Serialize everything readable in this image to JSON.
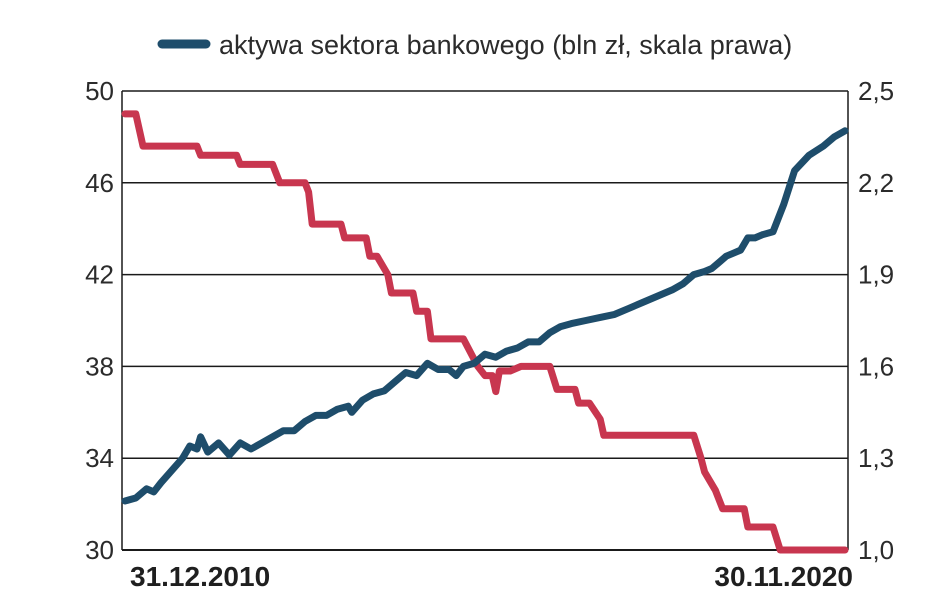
{
  "chart_data": {
    "type": "line",
    "legend": {
      "position": "top"
    },
    "x_start_label": "31.12.2010",
    "x_end_label": "30.11.2020",
    "left_axis": {
      "ylim": [
        30,
        50
      ],
      "ticks": [
        "30",
        "34",
        "38",
        "42",
        "46",
        "50"
      ]
    },
    "right_axis": {
      "ylim": [
        1.0,
        2.5
      ],
      "ticks": [
        "1,0",
        "1,3",
        "1,6",
        "1,9",
        "2,2",
        "2,5"
      ]
    },
    "grid": true,
    "series": [
      {
        "name": "",
        "axis": "left",
        "color": "#c8364f",
        "x": [
          0,
          0.015,
          0.025,
          0.1,
          0.105,
          0.155,
          0.16,
          0.205,
          0.21,
          0.215,
          0.25,
          0.255,
          0.26,
          0.3,
          0.305,
          0.335,
          0.34,
          0.35,
          0.365,
          0.37,
          0.4,
          0.405,
          0.42,
          0.425,
          0.47,
          0.49,
          0.5,
          0.51,
          0.515,
          0.52,
          0.535,
          0.55,
          0.56,
          0.59,
          0.6,
          0.625,
          0.63,
          0.645,
          0.66,
          0.665,
          0.79,
          0.8,
          0.805,
          0.82,
          0.83,
          0.86,
          0.865,
          0.9,
          0.91,
          1.0
        ],
        "values": [
          49.0,
          49.0,
          47.6,
          47.6,
          47.2,
          47.2,
          46.8,
          46.8,
          46.4,
          46.0,
          46.0,
          45.6,
          44.2,
          44.2,
          43.6,
          43.6,
          42.8,
          42.8,
          42.0,
          41.2,
          41.2,
          40.4,
          40.4,
          39.2,
          39.2,
          38.0,
          37.6,
          37.6,
          36.9,
          37.8,
          37.8,
          38.0,
          38.0,
          38.0,
          37.0,
          37.0,
          36.4,
          36.4,
          35.7,
          35.0,
          35.0,
          34.0,
          33.4,
          32.6,
          31.8,
          31.8,
          31.0,
          31.0,
          30.0,
          30.0
        ]
      },
      {
        "name": "aktywa sektora bankowego (bln zł, skala prawa)",
        "axis": "right",
        "color": "#1e4d6b",
        "x": [
          0,
          0.015,
          0.03,
          0.04,
          0.05,
          0.065,
          0.08,
          0.09,
          0.1,
          0.105,
          0.115,
          0.13,
          0.145,
          0.16,
          0.175,
          0.19,
          0.205,
          0.22,
          0.235,
          0.25,
          0.265,
          0.28,
          0.295,
          0.31,
          0.315,
          0.33,
          0.345,
          0.36,
          0.375,
          0.39,
          0.405,
          0.42,
          0.435,
          0.45,
          0.46,
          0.47,
          0.485,
          0.5,
          0.515,
          0.53,
          0.545,
          0.56,
          0.575,
          0.59,
          0.605,
          0.62,
          0.64,
          0.66,
          0.68,
          0.7,
          0.72,
          0.74,
          0.76,
          0.775,
          0.79,
          0.805,
          0.815,
          0.825,
          0.835,
          0.845,
          0.855,
          0.865,
          0.875,
          0.885,
          0.9,
          0.915,
          0.93,
          0.95,
          0.97,
          0.985,
          1.0
        ],
        "values": [
          1.16,
          1.17,
          1.2,
          1.19,
          1.22,
          1.26,
          1.3,
          1.34,
          1.33,
          1.37,
          1.32,
          1.35,
          1.31,
          1.35,
          1.33,
          1.35,
          1.37,
          1.39,
          1.39,
          1.42,
          1.44,
          1.44,
          1.46,
          1.47,
          1.45,
          1.49,
          1.51,
          1.52,
          1.55,
          1.58,
          1.57,
          1.61,
          1.59,
          1.59,
          1.57,
          1.6,
          1.61,
          1.64,
          1.63,
          1.65,
          1.66,
          1.68,
          1.68,
          1.71,
          1.73,
          1.74,
          1.75,
          1.76,
          1.77,
          1.79,
          1.81,
          1.83,
          1.85,
          1.87,
          1.9,
          1.91,
          1.92,
          1.94,
          1.96,
          1.97,
          1.98,
          2.02,
          2.02,
          2.03,
          2.04,
          2.13,
          2.24,
          2.29,
          2.32,
          2.35,
          2.37
        ]
      }
    ]
  }
}
